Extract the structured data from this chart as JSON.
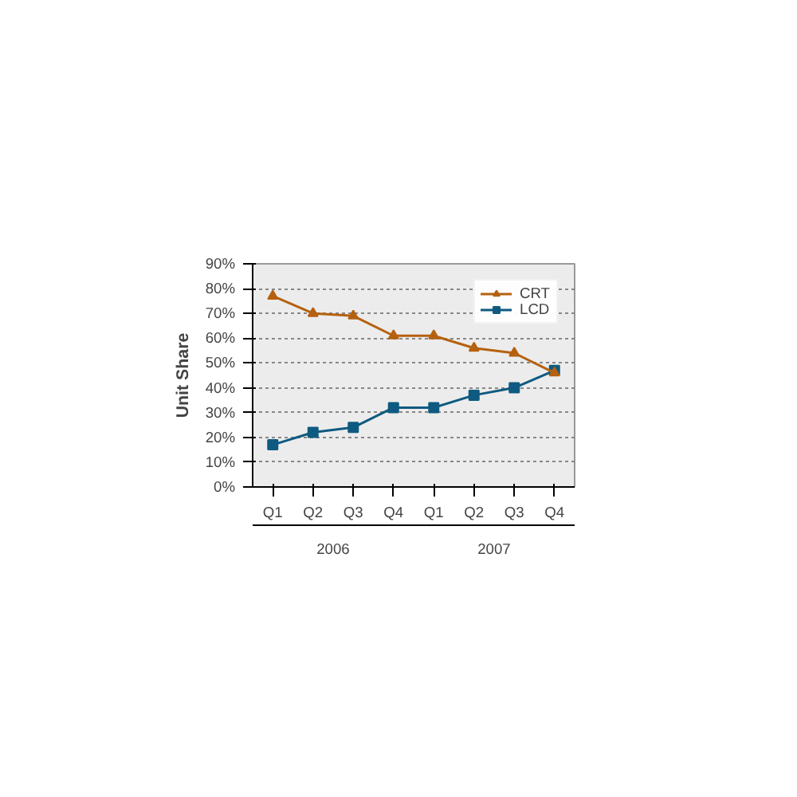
{
  "chart_data": {
    "type": "line",
    "ylabel": "Unit Share",
    "categories": [
      "Q1",
      "Q2",
      "Q3",
      "Q4",
      "Q1",
      "Q2",
      "Q3",
      "Q4"
    ],
    "series": [
      {
        "name": "CRT",
        "color": "#b5610f",
        "marker": "triangle",
        "values": [
          77,
          70,
          69,
          61,
          61,
          56,
          54,
          46
        ]
      },
      {
        "name": "LCD",
        "color": "#0f5a80",
        "marker": "square",
        "values": [
          17,
          22,
          24,
          32,
          32,
          37,
          40,
          47
        ]
      }
    ],
    "ylim": [
      0,
      90
    ],
    "yticks": [
      {
        "value": 0,
        "label": "0%"
      },
      {
        "value": 10,
        "label": "10%"
      },
      {
        "value": 20,
        "label": "20%"
      },
      {
        "value": 30,
        "label": "30%"
      },
      {
        "value": 40,
        "label": "40%"
      },
      {
        "value": 50,
        "label": "50%"
      },
      {
        "value": 60,
        "label": "60%"
      },
      {
        "value": 70,
        "label": "70%"
      },
      {
        "value": 80,
        "label": "80%"
      },
      {
        "value": 90,
        "label": "90%"
      }
    ],
    "annotations": [
      "2006",
      "2007"
    ],
    "grid": "y",
    "legend": "top right"
  }
}
